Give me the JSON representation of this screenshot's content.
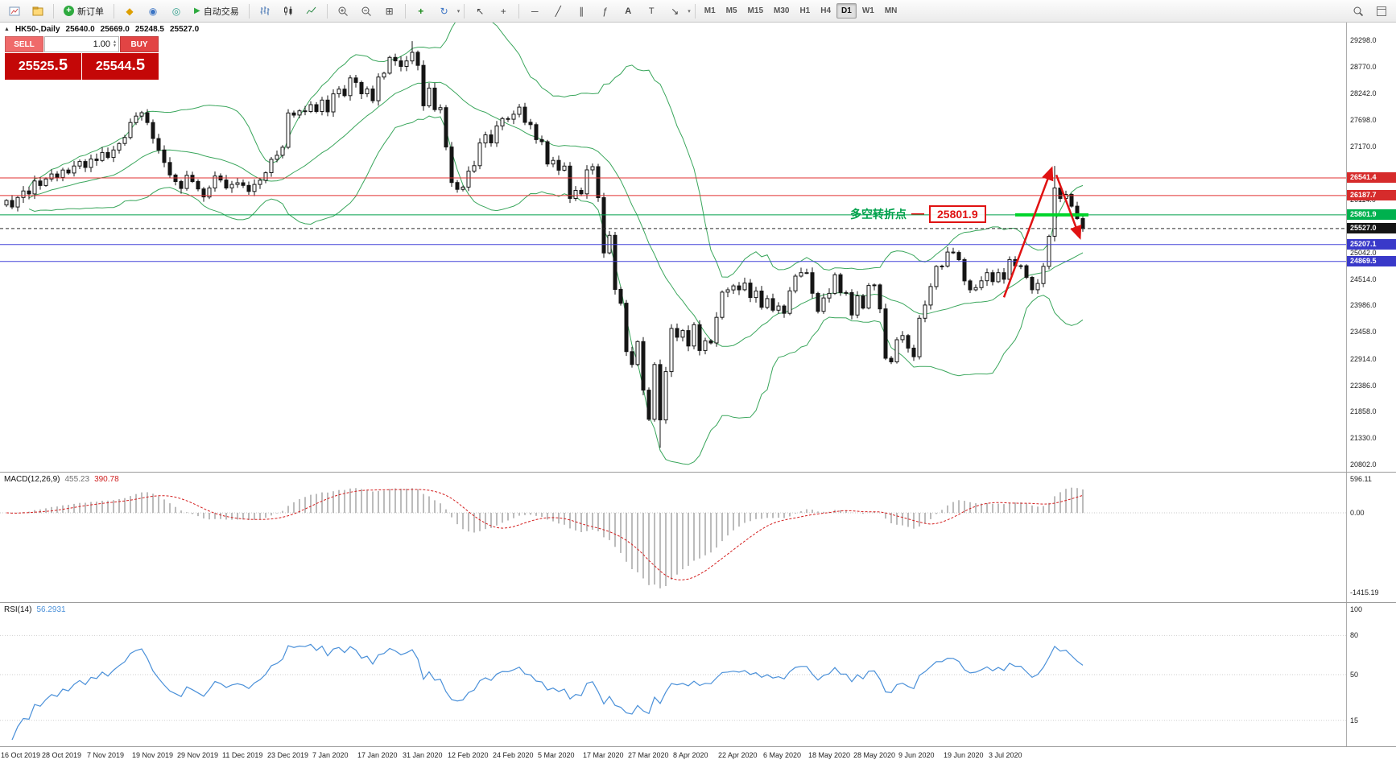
{
  "toolbar": {
    "new_order_label": "新订单",
    "auto_trading_label": "自动交易",
    "timeframes": [
      "M1",
      "M5",
      "M15",
      "M30",
      "H1",
      "H4",
      "D1",
      "W1",
      "MN"
    ],
    "active_timeframe": "D1"
  },
  "icons": {
    "new_order_plus": "+",
    "market_watch": "◆",
    "data_window": "◉",
    "navigator": "◎",
    "auto_trading_play": "▶",
    "tile_windows": "⊞",
    "indicators_plus": "+",
    "cycle": "↻",
    "cursor": "↖",
    "crosshair": "+",
    "hline": "─",
    "trendline": "╱",
    "channel": "∥",
    "fibonacci": "ƒ",
    "text_tool": "A",
    "label_tool": "T",
    "arrow_tool": "↘",
    "caret": "▾",
    "expand_marker": "▲",
    "vol_up": "▲",
    "vol_down": "▼"
  },
  "chart_header": {
    "symbol_period": "HK50-,Daily",
    "open": "25640.0",
    "high": "25669.0",
    "low": "25248.5",
    "close": "25527.0"
  },
  "trade_panel": {
    "sell_label": "SELL",
    "buy_label": "BUY",
    "volume": "1.00",
    "sell_price": "25525",
    "sell_pips": ".5",
    "buy_price": "25544",
    "buy_pips": ".5"
  },
  "annotation": {
    "text": "多空转折点",
    "dash": "—",
    "label": "25801.9",
    "text_color": "#00a14b",
    "box_color": "#e01212"
  },
  "levels": [
    {
      "t": "26541.4",
      "p": 26541.4,
      "c": "#e03030",
      "badge": "#d62b2b"
    },
    {
      "t": "26187.7",
      "p": 26187.7,
      "c": "#e03030",
      "badge": "#d62b2b"
    },
    {
      "t": "25801.9",
      "p": 25801.9,
      "c": "#00a14b",
      "badge": "#00b14e"
    },
    {
      "t": "25527.0",
      "p": 25527.0,
      "c": "#2b2b2b",
      "badge": "#151515",
      "dash": "4,3"
    },
    {
      "t": "25207.1",
      "p": 25207.1,
      "c": "#4343d8",
      "badge": "#3939c9"
    },
    {
      "t": "24869.5",
      "p": 24869.5,
      "c": "#4343d8",
      "badge": "#3939c9"
    }
  ],
  "main_axis_labels": [
    {
      "t": "29298.0",
      "p": 29298
    },
    {
      "t": "28770.0",
      "p": 28770
    },
    {
      "t": "28242.0",
      "p": 28242
    },
    {
      "t": "27698.0",
      "p": 27698
    },
    {
      "t": "27170.0",
      "p": 27170
    },
    {
      "t": "26114.0",
      "p": 26114
    },
    {
      "t": "25042.0",
      "p": 25042
    },
    {
      "t": "24514.0",
      "p": 24514
    },
    {
      "t": "23986.0",
      "p": 23986
    },
    {
      "t": "23458.0",
      "p": 23458
    },
    {
      "t": "22914.0",
      "p": 22914
    },
    {
      "t": "22386.0",
      "p": 22386
    },
    {
      "t": "21858.0",
      "p": 21858
    },
    {
      "t": "21330.0",
      "p": 21330
    },
    {
      "t": "20802.0",
      "p": 20802
    }
  ],
  "macd": {
    "label": "MACD(12,26,9)",
    "main_value": "455.23",
    "signal_value": "390.78",
    "axis": [
      {
        "t": "596.11",
        "v": 596.11
      },
      {
        "t": "0.00",
        "v": 0
      },
      {
        "t": "-1415.19",
        "v": -1415.19
      }
    ]
  },
  "rsi": {
    "label": "RSI(14)",
    "value": "56.2931",
    "axis": [
      {
        "t": "100",
        "v": 100
      },
      {
        "t": "80",
        "v": 80
      },
      {
        "t": "50",
        "v": 50
      },
      {
        "t": "15",
        "v": 15
      }
    ]
  },
  "chart_data": {
    "type": "candlestick",
    "symbol": "HK50-",
    "period": "Daily",
    "y_range": [
      20802,
      29298
    ],
    "x_labels": [
      "16 Oct 2019",
      "28 Oct 2019",
      "7 Nov 2019",
      "19 Nov 2019",
      "29 Nov 2019",
      "11 Dec 2019",
      "23 Dec 2019",
      "7 Jan 2020",
      "17 Jan 2020",
      "31 Jan 2020",
      "12 Feb 2020",
      "24 Feb 2020",
      "5 Mar 2020",
      "17 Mar 2020",
      "27 Mar 2020",
      "8 Apr 2020",
      "22 Apr 2020",
      "6 May 2020",
      "18 May 2020",
      "28 May 2020",
      "9 Jun 2020",
      "19 Jun 2020",
      "3 Jul 2020"
    ],
    "first_open": 26000,
    "closes": [
      26090,
      25960,
      26150,
      26280,
      26220,
      26480,
      26390,
      26520,
      26620,
      26550,
      26700,
      26640,
      26780,
      26870,
      26750,
      26920,
      26890,
      27050,
      26950,
      27100,
      27230,
      27350,
      27650,
      27780,
      27847,
      27650,
      27330,
      27100,
      26850,
      26600,
      26470,
      26330,
      26595,
      26470,
      26320,
      26160,
      26340,
      26580,
      26500,
      26340,
      26410,
      26444,
      26391,
      26270,
      26410,
      26494,
      26645,
      26913,
      26994,
      27155,
      27843,
      27800,
      27884,
      27871,
      28008,
      27871,
      28100,
      27864,
      28225,
      28319,
      28189,
      28543,
      28452,
      28226,
      28322,
      28087,
      28561,
      28638,
      28954,
      28885,
      28773,
      28883,
      29056,
      28795,
      27985,
      28341,
      27909,
      27949,
      27160,
      26449,
      26312,
      26357,
      26676,
      26786,
      27241,
      27404,
      27242,
      27583,
      27730,
      27716,
      27816,
      27959,
      27655,
      27609,
      27309,
      27267,
      26820,
      26893,
      26696,
      26778,
      26130,
      26292,
      26222,
      26702,
      26767,
      26147,
      25040,
      25392,
      24309,
      24032,
      23063,
      22805,
      23264,
      22292,
      21709,
      22805,
      21696,
      22663,
      23527,
      23352,
      23484,
      23175,
      23603,
      23085,
      23280,
      23236,
      23749,
      24253,
      24300,
      24380,
      24301,
      24435,
      24145,
      24276,
      23950,
      24125,
      23893,
      23977,
      23831,
      24280,
      24575,
      24644,
      24643,
      24230,
      23869,
      24137,
      24230,
      24602,
      24245,
      24246,
      23797,
      24180,
      23935,
      24388,
      24399,
      23919,
      22930,
      22857,
      23301,
      23384,
      23133,
      22961,
      23732,
      23996,
      24366,
      24770,
      24776,
      25057,
      25049,
      24905,
      24480,
      24301,
      24344,
      24481,
      24643,
      24464,
      24644,
      24511,
      24907,
      24781,
      24782,
      24550,
      24301,
      24427,
      24770,
      25373,
      26339,
      26129,
      26210,
      25975,
      25727,
      25527
    ],
    "wick_overrides": {
      "72": {
        "high": 29280
      },
      "116": {
        "low": 21139
      },
      "186": {
        "high": 26782
      }
    },
    "indicators": {
      "bollinger_period": 20,
      "bollinger_dev": 2,
      "macd": [
        12,
        26,
        9
      ],
      "rsi_period": 14
    },
    "annotations": {
      "green_segment": {
        "price": 25801.9,
        "from_i": 179,
        "to_i": 192,
        "color": "#00d42a"
      },
      "arrows": [
        {
          "from": {
            "i": 177,
            "price": 24150
          },
          "to": {
            "i": 185.5,
            "price": 26740
          }
        },
        {
          "from": {
            "i": 186.3,
            "price": 26600
          },
          "to": {
            "i": 190.5,
            "price": 25340
          }
        }
      ],
      "arrow_color": "#e01212"
    },
    "colors": {
      "band": "#3aa65c",
      "candle": "#151515",
      "macd_hist": "#a0a0a0",
      "macd_signal": "#d42020",
      "rsi_line": "#4a90d9"
    }
  }
}
